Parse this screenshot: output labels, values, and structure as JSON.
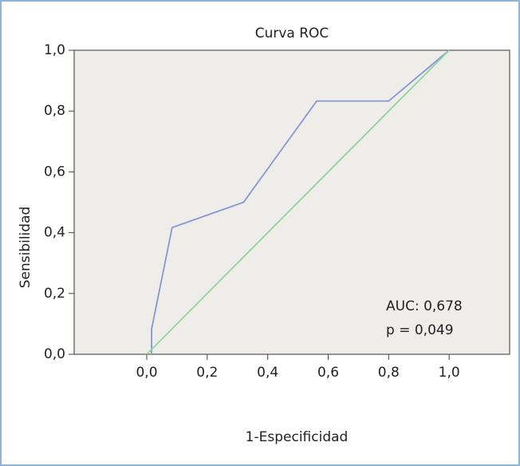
{
  "chart_data": {
    "type": "line",
    "title": "Curva ROC",
    "xlabel": "1-Especificidad",
    "ylabel": "Sensibilidad",
    "series": [
      {
        "color": "#8797cf",
        "x": [
          0.016,
          0.016,
          0.05,
          0.084,
          0.32,
          0.562,
          0.8,
          1.0
        ],
        "values": [
          0,
          0.083,
          0.25,
          0.417,
          0.5,
          0.833,
          0.833,
          1.0
        ]
      },
      {
        "color": "#93d3a0",
        "x": [
          0,
          1.0
        ],
        "values": [
          0,
          1.0
        ]
      }
    ],
    "annotations": [
      "AUC: 0,678",
      "p = 0,049"
    ],
    "xlim": [
      -0.24,
      1.2
    ],
    "ylim": [
      0,
      1
    ],
    "xticks": [
      {
        "value": 0,
        "label": "0,0"
      },
      {
        "value": 0.2,
        "label": "0,2"
      },
      {
        "value": 0.4,
        "label": "0,4"
      },
      {
        "value": 0.6,
        "label": "0,6"
      },
      {
        "value": 0.8,
        "label": "0,8"
      },
      {
        "value": 1.0,
        "label": "1,0"
      }
    ],
    "yticks": [
      {
        "value": 0,
        "label": "0,0"
      },
      {
        "value": 0.2,
        "label": "0,2"
      },
      {
        "value": 0.4,
        "label": "0,4"
      },
      {
        "value": 0.6,
        "label": "0,6"
      },
      {
        "value": 0.8,
        "label": "0,8"
      },
      {
        "value": 1.0,
        "label": "1,0"
      }
    ],
    "grid": false
  }
}
